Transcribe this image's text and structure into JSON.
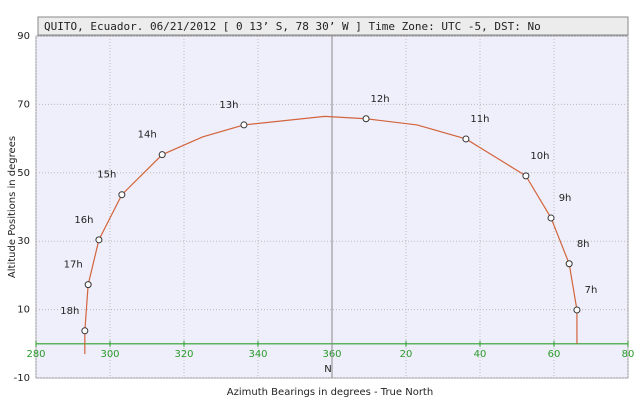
{
  "chart_data": {
    "type": "line",
    "title": "QUITO, Ecuador. 06/21/2012 [ 0 13’ S, 78 30’ W ] Time Zone: UTC -5, DST: No",
    "x_label": "Azimuth Bearings in degrees - True North",
    "y_label": "Altitude Positions in degrees",
    "north_label": "N",
    "north": 360,
    "horizon": 0,
    "xlim": [
      280,
      440
    ],
    "xticks": [
      280,
      300,
      320,
      340,
      360,
      {
        "value": 380,
        "label": "20"
      },
      {
        "value": 400,
        "label": "40"
      },
      {
        "value": 420,
        "label": "60"
      },
      {
        "value": 440,
        "label": "80"
      }
    ],
    "ylim": [
      -10,
      90
    ],
    "yticks": [
      -10,
      10,
      30,
      50,
      70,
      90
    ],
    "grid": true,
    "line_color": "#d2643c",
    "x": [
      293.2,
      293.2,
      294.1,
      297,
      303.2,
      314.1,
      325,
      336.2,
      358,
      369.2,
      383,
      396.2,
      412.4,
      419.2,
      424.1,
      426.2,
      426.2
    ],
    "values": [
      -3,
      3.8,
      17.3,
      30.4,
      43.6,
      55.3,
      60.5,
      64.0,
      66.5,
      65.8,
      64.0,
      59.9,
      49.1,
      36.8,
      23.4,
      9.9,
      0
    ],
    "hours": {
      "labels": [
        "18h",
        "17h",
        "16h",
        "15h",
        "14h",
        "13h",
        "12h",
        "11h",
        "10h",
        "9h",
        "8h",
        "7h"
      ],
      "x": [
        293.2,
        294.1,
        297,
        303.2,
        314.1,
        336.2,
        369.2,
        396.2,
        412.4,
        419.2,
        424.1,
        426.2
      ],
      "values": [
        3.8,
        17.3,
        30.4,
        43.6,
        55.3,
        64.0,
        65.8,
        59.9,
        49.1,
        36.8,
        23.4,
        9.9
      ]
    }
  }
}
